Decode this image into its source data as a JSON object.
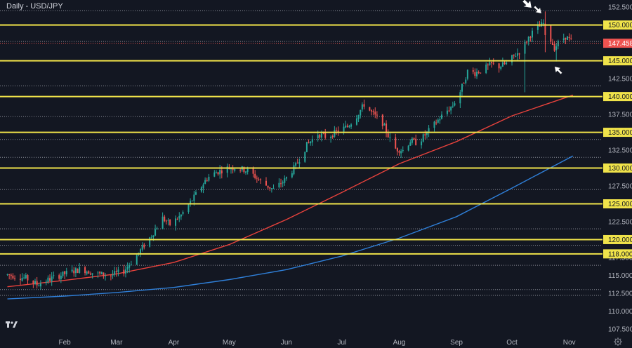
{
  "chart_data": {
    "type": "candlestick",
    "title": "Daily - USD/JPY",
    "ylim": [
      106.8,
      153.5
    ],
    "y_ticks": [
      107.5,
      110.0,
      112.5,
      115.0,
      117.5,
      120.0,
      122.5,
      125.0,
      127.5,
      130.0,
      132.5,
      135.0,
      137.5,
      140.0,
      142.5,
      145.0,
      147.5,
      150.0,
      152.5
    ],
    "y_tick_labels": [
      "107.500",
      "110.000",
      "112.500",
      "115.000",
      "117.500",
      "120.000",
      "122.500",
      "125.000",
      "127.500",
      "130.000",
      "132.500",
      "135.000",
      "137.500",
      "140.000",
      "142.500",
      "145.000",
      "147.500",
      "150.000",
      "152.500"
    ],
    "x_ticks": [
      {
        "label": "Feb",
        "day": 31
      },
      {
        "label": "Mar",
        "day": 59
      },
      {
        "label": "Apr",
        "day": 90
      },
      {
        "label": "May",
        "day": 120
      },
      {
        "label": "Jun",
        "day": 151
      },
      {
        "label": "Jul",
        "day": 181
      },
      {
        "label": "Aug",
        "day": 212
      },
      {
        "label": "Sep",
        "day": 243
      },
      {
        "label": "Oct",
        "day": 273
      },
      {
        "label": "Nov",
        "day": 304
      }
    ],
    "support_resistance_levels": [
      {
        "value": 150.0,
        "label": "150.000"
      },
      {
        "value": 145.0,
        "label": "145.000"
      },
      {
        "value": 140.0,
        "label": "140.000"
      },
      {
        "value": 135.0,
        "label": "135.000"
      },
      {
        "value": 130.0,
        "label": "130.000"
      },
      {
        "value": 125.0,
        "label": "125.000"
      },
      {
        "value": 120.0,
        "label": "120.000"
      },
      {
        "value": 118.0,
        "label": "118.000"
      }
    ],
    "dotted_levels": [
      152.0,
      147.7,
      141.5,
      137.2,
      134.0,
      131.5,
      127.0,
      121.5,
      119.2,
      116.4,
      113.0,
      112.2
    ],
    "current_price": {
      "value": 147.458,
      "label": "147.458"
    },
    "ohlc_anchors": [
      {
        "day": 0,
        "price": 115.1
      },
      {
        "day": 10,
        "price": 114.6
      },
      {
        "day": 16,
        "price": 113.7
      },
      {
        "day": 24,
        "price": 114.6
      },
      {
        "day": 32,
        "price": 115.3
      },
      {
        "day": 40,
        "price": 115.9
      },
      {
        "day": 48,
        "price": 115.2
      },
      {
        "day": 56,
        "price": 115.0
      },
      {
        "day": 63,
        "price": 115.6
      },
      {
        "day": 70,
        "price": 117.8
      },
      {
        "day": 78,
        "price": 120.6
      },
      {
        "day": 84,
        "price": 123.0
      },
      {
        "day": 88,
        "price": 122.1
      },
      {
        "day": 94,
        "price": 123.4
      },
      {
        "day": 101,
        "price": 125.9
      },
      {
        "day": 108,
        "price": 128.6
      },
      {
        "day": 113,
        "price": 129.4
      },
      {
        "day": 119,
        "price": 130.0
      },
      {
        "day": 124,
        "price": 130.1
      },
      {
        "day": 131,
        "price": 129.5
      },
      {
        "day": 138,
        "price": 127.9
      },
      {
        "day": 144,
        "price": 127.0
      },
      {
        "day": 150,
        "price": 128.3
      },
      {
        "day": 156,
        "price": 130.3
      },
      {
        "day": 162,
        "price": 133.2
      },
      {
        "day": 168,
        "price": 134.8
      },
      {
        "day": 173,
        "price": 134.3
      },
      {
        "day": 179,
        "price": 135.2
      },
      {
        "day": 184,
        "price": 135.8
      },
      {
        "day": 189,
        "price": 137.3
      },
      {
        "day": 193,
        "price": 138.9
      },
      {
        "day": 198,
        "price": 137.5
      },
      {
        "day": 203,
        "price": 136.3
      },
      {
        "day": 207,
        "price": 134.0
      },
      {
        "day": 210,
        "price": 132.7
      },
      {
        "day": 214,
        "price": 132.5
      },
      {
        "day": 218,
        "price": 133.8
      },
      {
        "day": 222,
        "price": 133.5
      },
      {
        "day": 228,
        "price": 135.2
      },
      {
        "day": 234,
        "price": 137.0
      },
      {
        "day": 241,
        "price": 138.8
      },
      {
        "day": 245,
        "price": 140.7
      },
      {
        "day": 249,
        "price": 143.5
      },
      {
        "day": 253,
        "price": 143.3
      },
      {
        "day": 258,
        "price": 143.9
      },
      {
        "day": 262,
        "price": 144.5
      },
      {
        "day": 266,
        "price": 144.2
      },
      {
        "day": 270,
        "price": 144.6
      },
      {
        "day": 273,
        "price": 145.4
      },
      {
        "day": 278,
        "price": 146.5
      },
      {
        "day": 283,
        "price": 148.7
      },
      {
        "day": 287,
        "price": 149.6
      },
      {
        "day": 290,
        "price": 150.2
      },
      {
        "day": 293,
        "price": 148.5
      },
      {
        "day": 296,
        "price": 146.8
      },
      {
        "day": 299,
        "price": 147.8
      },
      {
        "day": 302,
        "price": 148.4
      },
      {
        "day": 306,
        "price": 147.5
      }
    ],
    "ma_series": [
      {
        "color": "#e8423c",
        "points": [
          {
            "day": 0,
            "price": 113.4
          },
          {
            "day": 31,
            "price": 114.3
          },
          {
            "day": 59,
            "price": 115.2
          },
          {
            "day": 90,
            "price": 116.8
          },
          {
            "day": 120,
            "price": 119.3
          },
          {
            "day": 151,
            "price": 122.8
          },
          {
            "day": 181,
            "price": 126.6
          },
          {
            "day": 212,
            "price": 130.6
          },
          {
            "day": 243,
            "price": 133.7
          },
          {
            "day": 273,
            "price": 137.3
          },
          {
            "day": 306,
            "price": 140.2
          }
        ]
      },
      {
        "color": "#2f7fd8",
        "points": [
          {
            "day": 0,
            "price": 111.7
          },
          {
            "day": 31,
            "price": 112.1
          },
          {
            "day": 59,
            "price": 112.6
          },
          {
            "day": 90,
            "price": 113.3
          },
          {
            "day": 120,
            "price": 114.4
          },
          {
            "day": 151,
            "price": 115.8
          },
          {
            "day": 181,
            "price": 117.7
          },
          {
            "day": 212,
            "price": 120.2
          },
          {
            "day": 243,
            "price": 123.2
          },
          {
            "day": 273,
            "price": 127.2
          },
          {
            "day": 306,
            "price": 131.7
          }
        ]
      }
    ],
    "annotations": [
      {
        "type": "arrow",
        "direction": "down-right",
        "near_day": 289,
        "near_price": 151.6
      },
      {
        "type": "arrow",
        "direction": "up-left",
        "near_day": 296,
        "near_price": 144.2
      }
    ],
    "grid": false
  },
  "colors": {
    "background": "#131722",
    "level_line": "#f0e34a",
    "dotted_line": "#8a8d97",
    "up_candle": "#26a69a",
    "down_candle": "#ef5350",
    "price_badge": "#ef5350",
    "axis_text": "#b2b5be"
  },
  "icons": {
    "logo": "tradingview-logo-icon",
    "settings": "gear-icon"
  }
}
